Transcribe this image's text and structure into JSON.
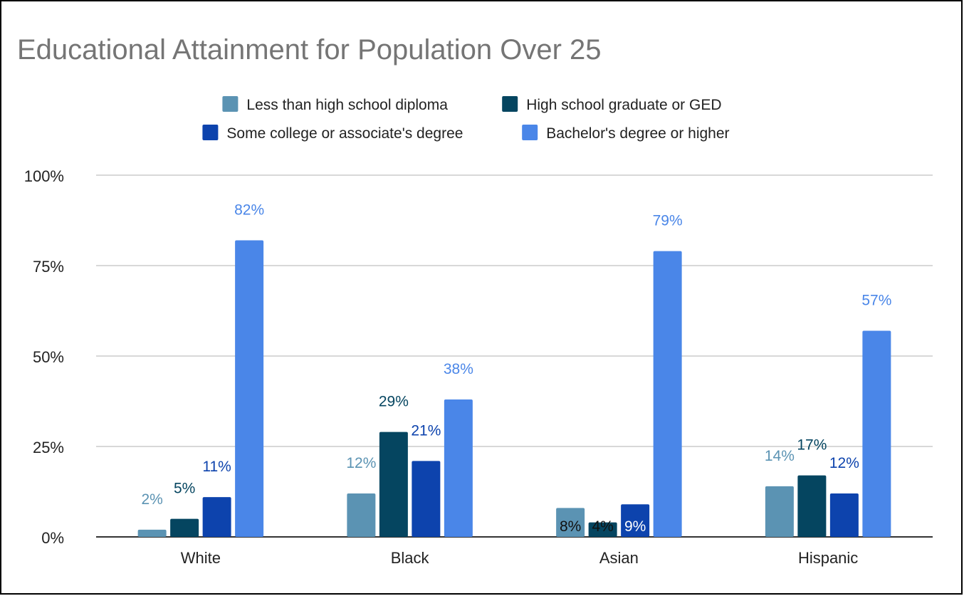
{
  "chart_data": {
    "type": "bar",
    "title": "Educational Attainment for Population Over 25",
    "xlabel": "",
    "ylabel": "",
    "categories": [
      "White",
      "Black",
      "Asian",
      "Hispanic"
    ],
    "series": [
      {
        "name": "Less than high school diploma",
        "color": "#5b93b3",
        "values": [
          2,
          12,
          8,
          14
        ],
        "labels": [
          "2%",
          "12%",
          "8%",
          "14%"
        ]
      },
      {
        "name": "High school graduate or GED",
        "color": "#054560",
        "values": [
          5,
          29,
          4,
          17
        ],
        "labels": [
          "5%",
          "29%",
          "4%",
          "17%"
        ]
      },
      {
        "name": "Some college or associate's degree",
        "color": "#0d43ad",
        "values": [
          11,
          21,
          9,
          12
        ],
        "labels": [
          "11%",
          "21%",
          "9%",
          "12%"
        ]
      },
      {
        "name": "Bachelor's degree or higher",
        "color": "#4a86e8",
        "values": [
          82,
          38,
          79,
          57
        ],
        "labels": [
          "82%",
          "38%",
          "79%",
          "57%"
        ]
      }
    ],
    "ylim": [
      0,
      100
    ],
    "yticks": [
      0,
      25,
      50,
      75,
      100
    ],
    "ytick_labels": [
      "0%",
      "25%",
      "50%",
      "75%",
      "100%"
    ],
    "grid": true,
    "legend": "top"
  }
}
